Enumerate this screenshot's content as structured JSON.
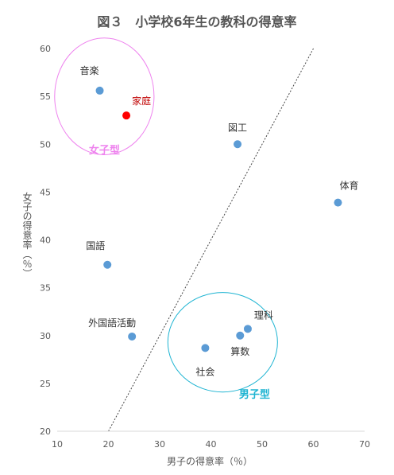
{
  "chart_data": {
    "type": "scatter",
    "title": "図３　小学校6年生の教科の得意率",
    "xlabel": "男子の得意率（％）",
    "ylabel": "女子の得意率（％）",
    "xlim": [
      10,
      70
    ],
    "ylim": [
      20,
      60
    ],
    "xticks": [
      10,
      20,
      30,
      40,
      50,
      60,
      70
    ],
    "yticks": [
      20,
      25,
      30,
      35,
      40,
      45,
      50,
      55,
      60
    ],
    "grid": false,
    "points": [
      {
        "label": "音楽",
        "x": 18.3,
        "y": 55.6,
        "color": "#5b9bd5"
      },
      {
        "label": "家庭",
        "x": 23.5,
        "y": 53.0,
        "color": "#ff0000"
      },
      {
        "label": "図工",
        "x": 45.2,
        "y": 50.0,
        "color": "#5b9bd5"
      },
      {
        "label": "体育",
        "x": 64.8,
        "y": 43.9,
        "color": "#5b9bd5"
      },
      {
        "label": "国語",
        "x": 19.8,
        "y": 37.4,
        "color": "#5b9bd5"
      },
      {
        "label": "外国語活動",
        "x": 24.6,
        "y": 29.9,
        "color": "#5b9bd5"
      },
      {
        "label": "理科",
        "x": 47.2,
        "y": 30.7,
        "color": "#5b9bd5"
      },
      {
        "label": "算数",
        "x": 45.7,
        "y": 30.0,
        "color": "#5b9bd5"
      },
      {
        "label": "社会",
        "x": 38.9,
        "y": 28.7,
        "color": "#5b9bd5"
      }
    ],
    "reference_line": {
      "style": "dotted",
      "from": {
        "x": 20.0,
        "y": 20.0
      },
      "to": {
        "x": 60.0,
        "y": 60.0
      }
    },
    "groups": [
      {
        "label": "女子型",
        "color": "#ee82ee",
        "center": {
          "x": 19.2,
          "y": 55.0
        },
        "rx": 9.7,
        "ry": 6.1
      },
      {
        "label": "男子型",
        "color": "#1eb4d2",
        "center": {
          "x": 42.3,
          "y": 29.3
        },
        "rx": 10.7,
        "ry": 5.2
      }
    ]
  }
}
